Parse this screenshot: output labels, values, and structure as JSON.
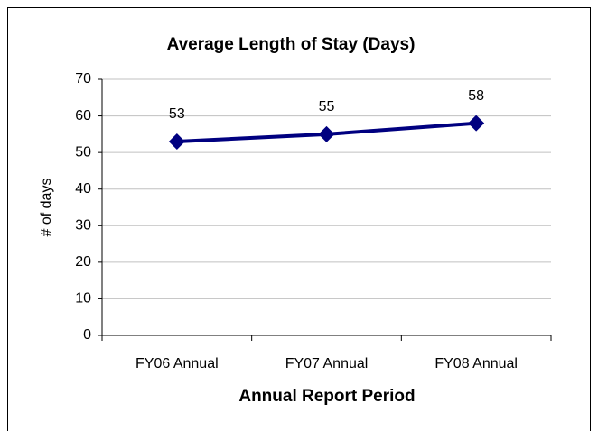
{
  "chart_data": {
    "type": "line",
    "title": "Average Length of Stay (Days)",
    "x_label": "Annual Report Period",
    "y_label": "# of days",
    "categories": [
      "FY06 Annual",
      "FY07 Annual",
      "FY08 Annual"
    ],
    "series": [
      {
        "name": "Average Length of Stay",
        "color": "#000080",
        "values": [
          53,
          55,
          58
        ]
      }
    ],
    "ylim": [
      0,
      70
    ],
    "yticks": [
      0,
      10,
      20,
      30,
      40,
      50,
      60,
      70
    ],
    "grid": true
  }
}
